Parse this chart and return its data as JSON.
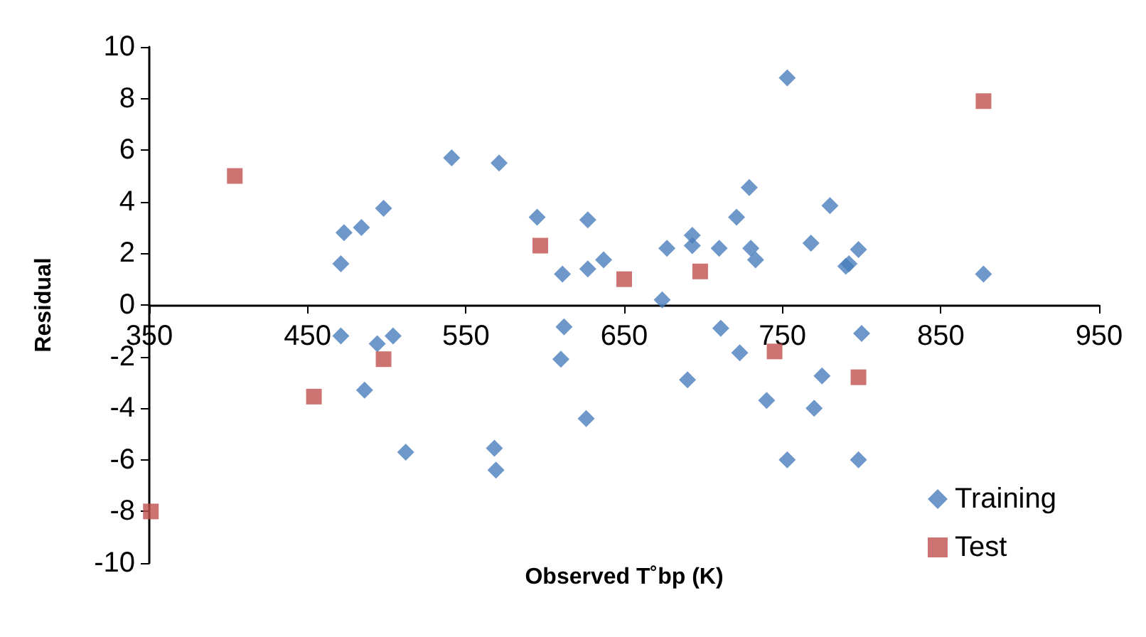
{
  "chart_data": {
    "type": "scatter",
    "xlabel": "Observed T˚bp (K)",
    "ylabel": "Residual",
    "xlim": [
      350,
      950
    ],
    "xticks": [
      350,
      450,
      550,
      650,
      750,
      850,
      950
    ],
    "ylim": [
      -10,
      10
    ],
    "yticks": [
      -10,
      -8,
      -6,
      -4,
      -2,
      0,
      2,
      4,
      6,
      8,
      10
    ],
    "grid": false,
    "legend": "bottom right",
    "series": [
      {
        "name": "Training",
        "color": "#4a7ebb",
        "marker": "diamond",
        "x": [
          471,
          473,
          484,
          498,
          541,
          571,
          595,
          627,
          611,
          627,
          637,
          677,
          693,
          693,
          710,
          721,
          729,
          730,
          733,
          753,
          768,
          780,
          790,
          792,
          798,
          877,
          674,
          471,
          494,
          504,
          486,
          512,
          568,
          569,
          612,
          610,
          626,
          690,
          711,
          723,
          740,
          753,
          775,
          770,
          800,
          798
        ],
        "values": [
          1.6,
          2.8,
          3.0,
          3.75,
          5.7,
          5.5,
          3.4,
          3.3,
          1.2,
          1.4,
          1.75,
          2.2,
          2.7,
          2.3,
          2.2,
          3.4,
          4.55,
          2.2,
          1.75,
          8.8,
          2.4,
          3.85,
          1.5,
          1.6,
          2.15,
          1.2,
          0.2,
          -1.2,
          -1.5,
          -1.2,
          -3.3,
          -5.7,
          -5.55,
          -6.4,
          -0.85,
          -2.1,
          -4.4,
          -2.9,
          -0.9,
          -1.85,
          -3.7,
          -6.0,
          -2.75,
          -4.0,
          -1.1,
          -6.0
        ]
      },
      {
        "name": "Test",
        "color": "#c0504d",
        "marker": "square",
        "x": [
          351,
          404,
          454,
          498,
          597,
          650,
          698,
          745,
          798,
          877
        ],
        "values": [
          -8.0,
          5.0,
          -3.55,
          -2.1,
          2.3,
          1.0,
          1.3,
          -1.8,
          -2.8,
          7.9
        ]
      }
    ]
  }
}
